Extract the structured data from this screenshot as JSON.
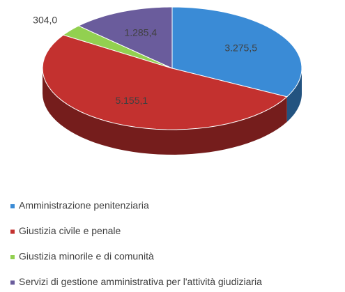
{
  "chart_data": {
    "type": "pie",
    "categories": [
      "Amministrazione penitenziaria",
      "Giustizia civile e penale",
      "Giustizia minorile e di comunità",
      "Servizi di gestione amministrativa per l'attività giudiziaria"
    ],
    "values": [
      3275.5,
      5155.1,
      304.0,
      1285.4
    ],
    "value_labels": [
      "3.275,5",
      "5.155,1",
      "304,0",
      "1.285,4"
    ],
    "colors": [
      "#3a8bd6",
      "#c3312f",
      "#92d050",
      "#6a5c9c"
    ],
    "legend": "bottom"
  }
}
